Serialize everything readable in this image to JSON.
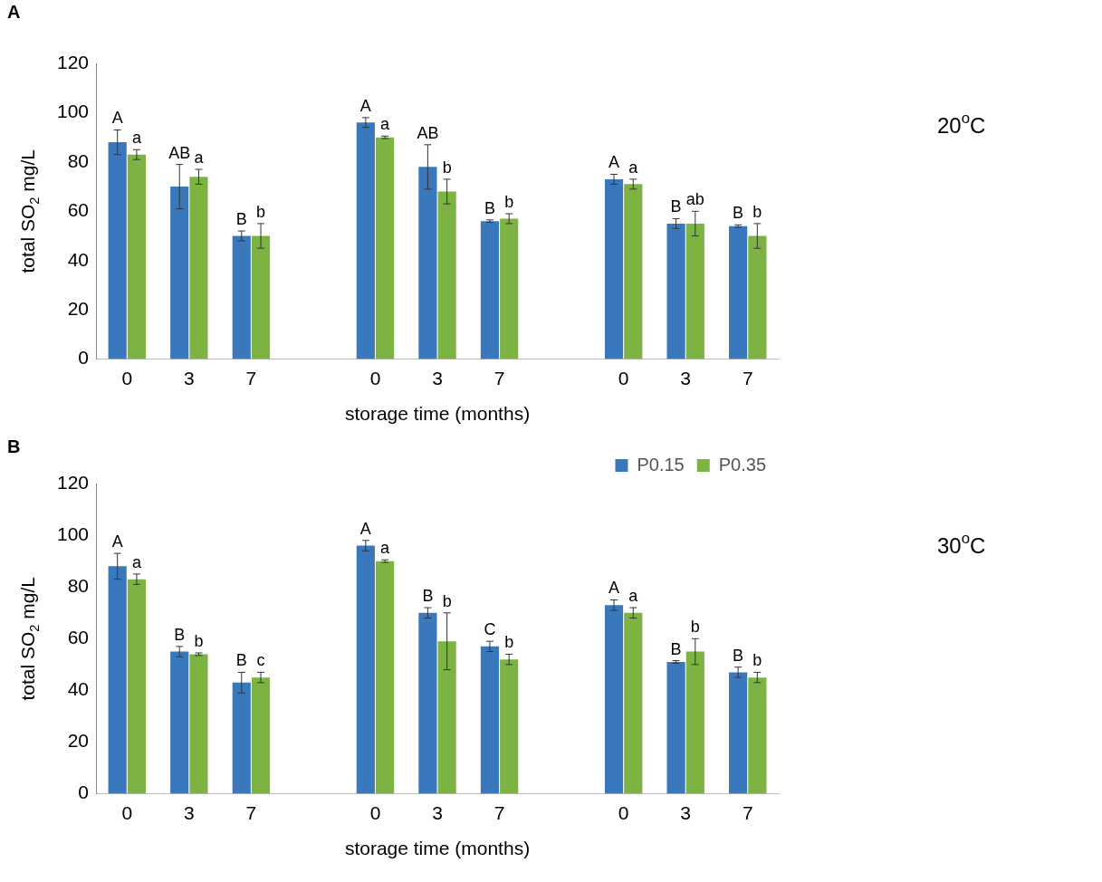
{
  "chart_data": [
    {
      "type": "bar",
      "title": "A",
      "ylabel": "total SO$_{2}$ mg/L",
      "xlabel": "storage time (months)",
      "annotations": [
        "20$^{o}$C"
      ],
      "categories": [
        "0",
        "3",
        "7",
        null,
        "0",
        "3",
        "7",
        null,
        "0",
        "3",
        "7"
      ],
      "ylim": [
        0,
        120
      ],
      "yticks": [
        0,
        20,
        40,
        60,
        80,
        100,
        120
      ],
      "grid": false,
      "legend": false,
      "series": [
        {
          "color": "#3a78bd",
          "values": [
            88,
            70,
            50,
            null,
            96,
            78,
            56,
            null,
            73,
            55,
            54
          ],
          "errors": [
            5,
            9,
            2,
            null,
            2,
            9,
            0.5,
            null,
            2,
            2,
            0.5
          ],
          "value_labels": [
            "A",
            "AB",
            "B",
            null,
            "A",
            "AB",
            "B",
            null,
            "A",
            "B",
            "B"
          ]
        },
        {
          "color": "#7cb342",
          "values": [
            83,
            74,
            50,
            null,
            90,
            68,
            57,
            null,
            71,
            55,
            50
          ],
          "errors": [
            2,
            3,
            5,
            null,
            0.5,
            5,
            2,
            null,
            2,
            5,
            5
          ],
          "value_labels": [
            "a",
            "a",
            "b",
            null,
            "a",
            "b",
            "b",
            null,
            "a",
            "ab",
            "b"
          ]
        }
      ]
    },
    {
      "type": "bar",
      "title": "B",
      "ylabel": "total SO$_{2}$ mg/L",
      "xlabel": "storage time (months)",
      "annotations": [
        "30$^{o}$C"
      ],
      "categories": [
        "0",
        "3",
        "7",
        null,
        "0",
        "3",
        "7",
        null,
        "0",
        "3",
        "7"
      ],
      "ylim": [
        0,
        120
      ],
      "yticks": [
        0,
        20,
        40,
        60,
        80,
        100,
        120
      ],
      "grid": false,
      "legend": "top right",
      "series": [
        {
          "name": "P0.15",
          "color": "#3a78bd",
          "values": [
            88,
            55,
            43,
            null,
            96,
            70,
            57,
            null,
            73,
            51,
            47
          ],
          "errors": [
            5,
            2,
            4,
            null,
            2,
            2,
            2,
            null,
            2,
            0.5,
            2
          ],
          "value_labels": [
            "A",
            "B",
            "B",
            null,
            "A",
            "B",
            "C",
            null,
            "A",
            "B",
            "B"
          ]
        },
        {
          "name": "P0.35",
          "color": "#7cb342",
          "values": [
            83,
            54,
            45,
            null,
            90,
            59,
            52,
            null,
            70,
            55,
            45
          ],
          "errors": [
            2,
            0.5,
            2,
            null,
            0.5,
            11,
            2,
            null,
            2,
            5,
            2
          ],
          "value_labels": [
            "a",
            "b",
            "c",
            null,
            "a",
            "b",
            "b",
            null,
            "a",
            "b",
            "b"
          ]
        }
      ]
    }
  ]
}
